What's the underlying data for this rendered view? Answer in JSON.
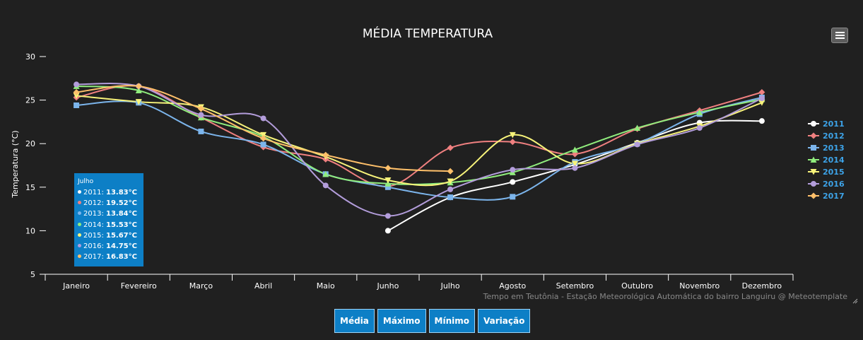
{
  "chart_data": {
    "type": "line",
    "title": "MÉDIA TEMPERATURA",
    "ylabel": "Temperatura (°C)",
    "xlabel": "",
    "ylim": [
      5,
      30
    ],
    "yticks": [
      5,
      10,
      15,
      20,
      25,
      30
    ],
    "categories": [
      "Janeiro",
      "Fevereiro",
      "Março",
      "Abril",
      "Maio",
      "Junho",
      "Julho",
      "Agosto",
      "Setembro",
      "Outubro",
      "Novembro",
      "Dezembro"
    ],
    "series": [
      {
        "name": "2011",
        "color": "#ffffff",
        "marker": "circle",
        "values": [
          null,
          null,
          null,
          null,
          null,
          10.0,
          13.83,
          15.6,
          17.6,
          20.1,
          22.4,
          22.6
        ]
      },
      {
        "name": "2012",
        "color": "#f08080",
        "marker": "diamond",
        "values": [
          25.3,
          26.6,
          23.0,
          19.6,
          18.2,
          15.1,
          19.52,
          20.2,
          18.8,
          21.7,
          23.8,
          25.9
        ]
      },
      {
        "name": "2013",
        "color": "#7cb5ec",
        "marker": "square",
        "values": [
          24.4,
          24.7,
          21.4,
          19.9,
          16.5,
          15.0,
          13.84,
          13.9,
          17.9,
          20.0,
          23.4,
          25.3
        ]
      },
      {
        "name": "2014",
        "color": "#90ed7d",
        "marker": "triangle",
        "values": [
          26.6,
          26.1,
          23.0,
          20.8,
          16.5,
          15.4,
          15.53,
          16.7,
          19.3,
          21.8,
          23.6,
          25.1
        ]
      },
      {
        "name": "2015",
        "color": "#f7f37a",
        "marker": "triangle-down",
        "values": [
          25.5,
          24.8,
          24.2,
          21.0,
          18.5,
          15.8,
          15.67,
          21.0,
          17.7,
          20.0,
          22.0,
          24.7
        ]
      },
      {
        "name": "2016",
        "color": "#b39ddb",
        "marker": "circle",
        "values": [
          26.8,
          26.6,
          23.3,
          22.9,
          15.2,
          11.7,
          14.75,
          17.0,
          17.2,
          19.9,
          21.8,
          25.2
        ]
      },
      {
        "name": "2017",
        "color": "#ffc06a",
        "marker": "diamond",
        "values": [
          25.9,
          26.6,
          24.0,
          20.6,
          18.7,
          17.2,
          16.83,
          null,
          null,
          null,
          null,
          null
        ]
      }
    ],
    "legend_position": "right",
    "grid": false,
    "credits": "Tempo em Teutônia - Estação Meteorológica Automática do bairro Languiru @ Meteotemplate"
  },
  "tooltip": {
    "title": "Julho",
    "rows": [
      {
        "label": "2011:",
        "value": "13.83°C",
        "color": "#ffffff"
      },
      {
        "label": "2012:",
        "value": "19.52°C",
        "color": "#f08080"
      },
      {
        "label": "2013:",
        "value": "13.84°C",
        "color": "#7cb5ec"
      },
      {
        "label": "2014:",
        "value": "15.53°C",
        "color": "#90ed7d"
      },
      {
        "label": "2015:",
        "value": "15.67°C",
        "color": "#f7f37a"
      },
      {
        "label": "2016:",
        "value": "14.75°C",
        "color": "#b39ddb"
      },
      {
        "label": "2017:",
        "value": "16.83°C",
        "color": "#ffc06a"
      }
    ]
  },
  "buttons": {
    "media": "Média",
    "maximo": "Máximo",
    "minimo": "Mínimo",
    "variacao": "Variação"
  },
  "colors": {
    "background": "#202020",
    "accent": "#0d7fc6",
    "legend_text": "#3da3e8"
  }
}
